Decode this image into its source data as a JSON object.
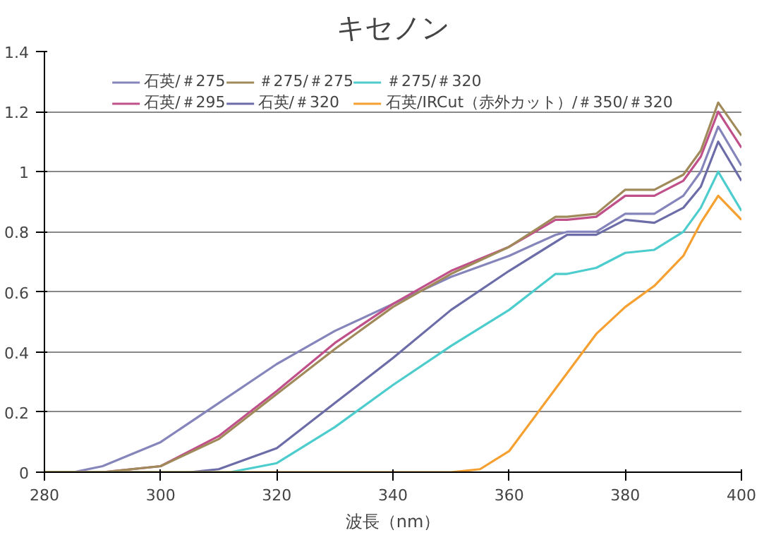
{
  "chart_data": {
    "type": "line",
    "title": "キセノン",
    "xlabel": "波長（nm）",
    "xlim": [
      280,
      400
    ],
    "xticks": [
      280,
      300,
      320,
      340,
      360,
      380,
      400
    ],
    "ylim": [
      0,
      1.4
    ],
    "yticks": [
      0,
      0.2,
      0.4,
      0.6,
      0.8,
      1,
      1.2,
      1.4
    ],
    "grid": "y",
    "legend": "top",
    "line_style": "solid",
    "marker": "none",
    "series": [
      {
        "name": "石英/＃275",
        "color": "#8585bb",
        "x": [
          280,
          285,
          290,
          300,
          310,
          320,
          330,
          340,
          350,
          360,
          368,
          370,
          375,
          380,
          385,
          390,
          393,
          396,
          400
        ],
        "values": [
          0,
          0,
          0.02,
          0.1,
          0.23,
          0.36,
          0.47,
          0.56,
          0.65,
          0.72,
          0.79,
          0.8,
          0.8,
          0.86,
          0.86,
          0.92,
          1.0,
          1.15,
          1.02
        ]
      },
      {
        "name": "石英/＃295",
        "color": "#c0508a",
        "x": [
          280,
          290,
          300,
          310,
          320,
          330,
          340,
          350,
          360,
          368,
          370,
          375,
          380,
          385,
          390,
          393,
          396,
          400
        ],
        "values": [
          0,
          0,
          0.02,
          0.12,
          0.27,
          0.43,
          0.56,
          0.67,
          0.75,
          0.84,
          0.84,
          0.85,
          0.92,
          0.92,
          0.97,
          1.05,
          1.2,
          1.08
        ]
      },
      {
        "name": "＃275/＃275",
        "color": "#a08a5a",
        "x": [
          280,
          290,
          300,
          310,
          320,
          330,
          340,
          350,
          360,
          368,
          370,
          375,
          380,
          385,
          390,
          393,
          396,
          400
        ],
        "values": [
          0,
          0,
          0.02,
          0.11,
          0.26,
          0.41,
          0.55,
          0.66,
          0.75,
          0.85,
          0.85,
          0.86,
          0.94,
          0.94,
          0.99,
          1.07,
          1.23,
          1.12
        ]
      },
      {
        "name": "石英/＃320",
        "color": "#6c6ca8",
        "x": [
          280,
          305,
          310,
          320,
          330,
          340,
          350,
          360,
          370,
          375,
          380,
          385,
          390,
          393,
          396,
          400
        ],
        "values": [
          0,
          0,
          0.01,
          0.08,
          0.23,
          0.38,
          0.54,
          0.67,
          0.79,
          0.79,
          0.84,
          0.83,
          0.88,
          0.95,
          1.1,
          0.97
        ]
      },
      {
        "name": "＃275/＃320",
        "color": "#4ccccc",
        "x": [
          280,
          312,
          320,
          330,
          340,
          350,
          360,
          368,
          370,
          375,
          380,
          385,
          390,
          393,
          396,
          400
        ],
        "values": [
          0,
          0,
          0.03,
          0.15,
          0.29,
          0.42,
          0.54,
          0.66,
          0.66,
          0.68,
          0.73,
          0.74,
          0.8,
          0.88,
          1.0,
          0.87
        ]
      },
      {
        "name": "石英/IRCut（赤外カット）/＃350/＃320",
        "color": "#f5a030",
        "x": [
          280,
          350,
          355,
          360,
          365,
          370,
          375,
          380,
          385,
          390,
          393,
          396,
          400
        ],
        "values": [
          0,
          0,
          0.01,
          0.07,
          0.2,
          0.33,
          0.46,
          0.55,
          0.62,
          0.72,
          0.83,
          0.92,
          0.84
        ]
      }
    ]
  }
}
